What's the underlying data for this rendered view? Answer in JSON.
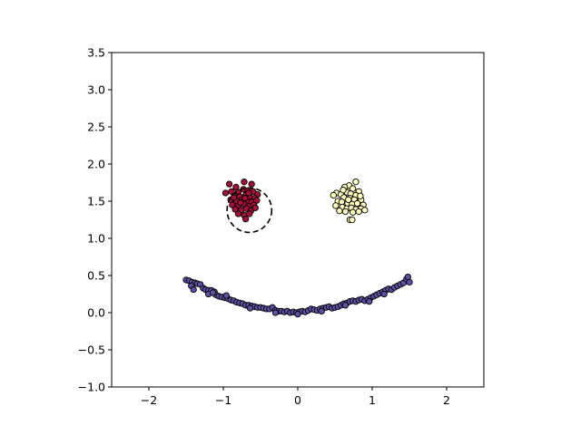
{
  "chart_data": {
    "type": "scatter",
    "title": "",
    "xlabel": "",
    "ylabel": "",
    "xlim": [
      -2.5,
      2.5
    ],
    "ylim": [
      -1.0,
      3.5
    ],
    "xticks": [
      -2,
      -1,
      0,
      1,
      2
    ],
    "xtick_labels": [
      "−2",
      "−1",
      "0",
      "1",
      "2"
    ],
    "yticks": [
      -1.0,
      -0.5,
      0.0,
      0.5,
      1.0,
      1.5,
      2.0,
      2.5,
      3.0,
      3.5
    ],
    "ytick_labels": [
      "−1.0",
      "−0.5",
      "0.0",
      "0.5",
      "1.0",
      "1.5",
      "2.0",
      "2.5",
      "3.0",
      "3.5"
    ],
    "grid": false,
    "legend": "none",
    "point_edge_color": "#000000",
    "series": [
      {
        "color": "#a50f3c",
        "points": [
          [
            -0.92,
            1.73
          ],
          [
            -0.83,
            1.69
          ],
          [
            -0.72,
            1.76
          ],
          [
            -0.62,
            1.73
          ],
          [
            -0.97,
            1.61
          ],
          [
            -0.89,
            1.63
          ],
          [
            -0.8,
            1.62
          ],
          [
            -0.73,
            1.66
          ],
          [
            -0.67,
            1.64
          ],
          [
            -0.6,
            1.63
          ],
          [
            -0.54,
            1.59
          ],
          [
            -0.85,
            1.57
          ],
          [
            -0.78,
            1.56
          ],
          [
            -0.7,
            1.58
          ],
          [
            -0.64,
            1.55
          ],
          [
            -0.58,
            1.54
          ],
          [
            -0.9,
            1.52
          ],
          [
            -0.82,
            1.5
          ],
          [
            -0.75,
            1.52
          ],
          [
            -0.68,
            1.5
          ],
          [
            -0.62,
            1.49
          ],
          [
            -0.55,
            1.51
          ],
          [
            -0.88,
            1.45
          ],
          [
            -0.8,
            1.44
          ],
          [
            -0.72,
            1.46
          ],
          [
            -0.66,
            1.43
          ],
          [
            -0.59,
            1.45
          ],
          [
            -0.84,
            1.39
          ],
          [
            -0.76,
            1.38
          ],
          [
            -0.69,
            1.4
          ],
          [
            -0.63,
            1.37
          ],
          [
            -0.8,
            1.33
          ],
          [
            -0.72,
            1.31
          ],
          [
            -0.65,
            1.33
          ],
          [
            -0.7,
            1.26
          ],
          [
            -0.77,
            1.48
          ],
          [
            -0.71,
            1.54
          ],
          [
            -0.66,
            1.61
          ],
          [
            -0.86,
            1.55
          ],
          [
            -0.57,
            1.41
          ]
        ]
      },
      {
        "color": "#ffffbf",
        "points": [
          [
            0.78,
            1.76
          ],
          [
            0.69,
            1.71
          ],
          [
            0.63,
            1.69
          ],
          [
            0.74,
            1.67
          ],
          [
            0.82,
            1.63
          ],
          [
            0.52,
            1.61
          ],
          [
            0.58,
            1.59
          ],
          [
            0.66,
            1.62
          ],
          [
            0.71,
            1.6
          ],
          [
            0.78,
            1.58
          ],
          [
            0.48,
            1.58
          ],
          [
            0.62,
            1.55
          ],
          [
            0.7,
            1.54
          ],
          [
            0.76,
            1.52
          ],
          [
            0.85,
            1.52
          ],
          [
            0.54,
            1.5
          ],
          [
            0.59,
            1.49
          ],
          [
            0.67,
            1.47
          ],
          [
            0.73,
            1.46
          ],
          [
            0.8,
            1.47
          ],
          [
            0.88,
            1.45
          ],
          [
            0.51,
            1.44
          ],
          [
            0.6,
            1.42
          ],
          [
            0.66,
            1.4
          ],
          [
            0.72,
            1.41
          ],
          [
            0.78,
            1.39
          ],
          [
            0.85,
            1.4
          ],
          [
            0.9,
            1.38
          ],
          [
            0.56,
            1.37
          ],
          [
            0.64,
            1.36
          ],
          [
            0.74,
            1.35
          ],
          [
            0.82,
            1.36
          ],
          [
            0.7,
            1.25
          ],
          [
            0.73,
            1.25
          ],
          [
            0.68,
            1.52
          ],
          [
            0.61,
            1.65
          ],
          [
            0.84,
            1.57
          ]
        ]
      },
      {
        "color": "#5e4fa2",
        "points": [
          [
            -1.5,
            0.44
          ],
          [
            -1.46,
            0.43
          ],
          [
            -1.42,
            0.41
          ],
          [
            -1.38,
            0.4
          ],
          [
            -1.35,
            0.39
          ],
          [
            -1.31,
            0.38
          ],
          [
            -1.43,
            0.36
          ],
          [
            -1.4,
            0.31
          ],
          [
            -1.27,
            0.33
          ],
          [
            -1.24,
            0.31
          ],
          [
            -1.2,
            0.3
          ],
          [
            -1.16,
            0.3
          ],
          [
            -1.12,
            0.28
          ],
          [
            -1.2,
            0.25
          ],
          [
            -1.1,
            0.24
          ],
          [
            -1.06,
            0.22
          ],
          [
            -1.02,
            0.21
          ],
          [
            -0.98,
            0.2
          ],
          [
            -0.94,
            0.19
          ],
          [
            -0.9,
            0.17
          ],
          [
            -0.86,
            0.16
          ],
          [
            -0.82,
            0.14
          ],
          [
            -0.78,
            0.13
          ],
          [
            -0.74,
            0.12
          ],
          [
            -0.7,
            0.1
          ],
          [
            -0.66,
            0.1
          ],
          [
            -0.62,
            0.09
          ],
          [
            -0.58,
            0.08
          ],
          [
            -0.54,
            0.07
          ],
          [
            -0.5,
            0.07
          ],
          [
            -0.46,
            0.06
          ],
          [
            -0.42,
            0.05
          ],
          [
            -0.38,
            0.05
          ],
          [
            -0.34,
            0.07
          ],
          [
            -0.3,
            0.03
          ],
          [
            -0.26,
            0.02
          ],
          [
            -0.22,
            0.02
          ],
          [
            -0.18,
            0.01
          ],
          [
            -0.14,
            0.02
          ],
          [
            -0.1,
            0.0
          ],
          [
            -0.06,
            0.01
          ],
          [
            -0.02,
            0.0
          ],
          [
            0.02,
            0.01
          ],
          [
            0.06,
            0.02
          ],
          [
            0.1,
            0.01
          ],
          [
            0.14,
            0.03
          ],
          [
            0.18,
            0.05
          ],
          [
            0.22,
            0.04
          ],
          [
            0.26,
            0.03
          ],
          [
            0.3,
            0.05
          ],
          [
            0.34,
            0.06
          ],
          [
            0.38,
            0.07
          ],
          [
            0.42,
            0.08
          ],
          [
            0.46,
            0.06
          ],
          [
            0.5,
            0.07
          ],
          [
            0.54,
            0.08
          ],
          [
            0.58,
            0.1
          ],
          [
            0.62,
            0.12
          ],
          [
            0.66,
            0.13
          ],
          [
            0.7,
            0.15
          ],
          [
            0.74,
            0.16
          ],
          [
            0.78,
            0.15
          ],
          [
            0.82,
            0.17
          ],
          [
            0.86,
            0.18
          ],
          [
            0.9,
            0.16
          ],
          [
            0.94,
            0.18
          ],
          [
            0.98,
            0.2
          ],
          [
            1.02,
            0.22
          ],
          [
            1.06,
            0.24
          ],
          [
            1.1,
            0.26
          ],
          [
            1.14,
            0.28
          ],
          [
            1.18,
            0.3
          ],
          [
            1.22,
            0.32
          ],
          [
            1.26,
            0.31
          ],
          [
            1.3,
            0.34
          ],
          [
            1.34,
            0.36
          ],
          [
            1.38,
            0.38
          ],
          [
            1.42,
            0.4
          ],
          [
            1.46,
            0.45
          ],
          [
            1.48,
            0.48
          ],
          [
            1.5,
            0.41
          ],
          [
            -0.3,
            0.0
          ],
          [
            0.0,
            -0.02
          ],
          [
            0.32,
            0.02
          ],
          [
            -0.64,
            0.06
          ],
          [
            0.64,
            0.1
          ],
          [
            -0.96,
            0.23
          ],
          [
            0.96,
            0.15
          ],
          [
            -1.14,
            0.27
          ],
          [
            1.16,
            0.25
          ]
        ]
      }
    ],
    "circle": {
      "center": [
        -0.65,
        1.38
      ],
      "radius": 0.3,
      "style": "dashed",
      "color": "#000000"
    }
  }
}
